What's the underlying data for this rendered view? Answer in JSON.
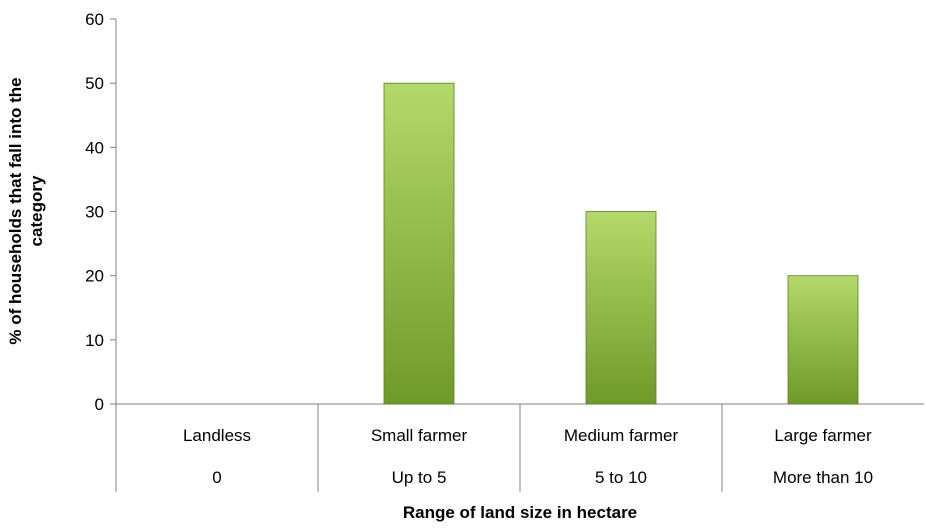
{
  "chart_data": {
    "type": "bar",
    "categories": [
      "Landless",
      "Small farmer",
      "Medium farmer",
      "Large farmer"
    ],
    "sub_categories": [
      "0",
      "Up to 5",
      "5 to 10",
      "More than 10"
    ],
    "values": [
      0,
      50,
      30,
      20
    ],
    "title": "",
    "xlabel": "Range of land size in hectare",
    "ylabel_lines": [
      "% of households that fall into the",
      "category"
    ],
    "ylim": [
      0,
      60
    ],
    "yticks": [
      0,
      10,
      20,
      30,
      40,
      50,
      60
    ],
    "grid": false,
    "legend": "none",
    "bar_color_top": "#b3d96a",
    "bar_color_bottom": "#6e9a2a",
    "bar_stroke": "#5a7f22"
  }
}
